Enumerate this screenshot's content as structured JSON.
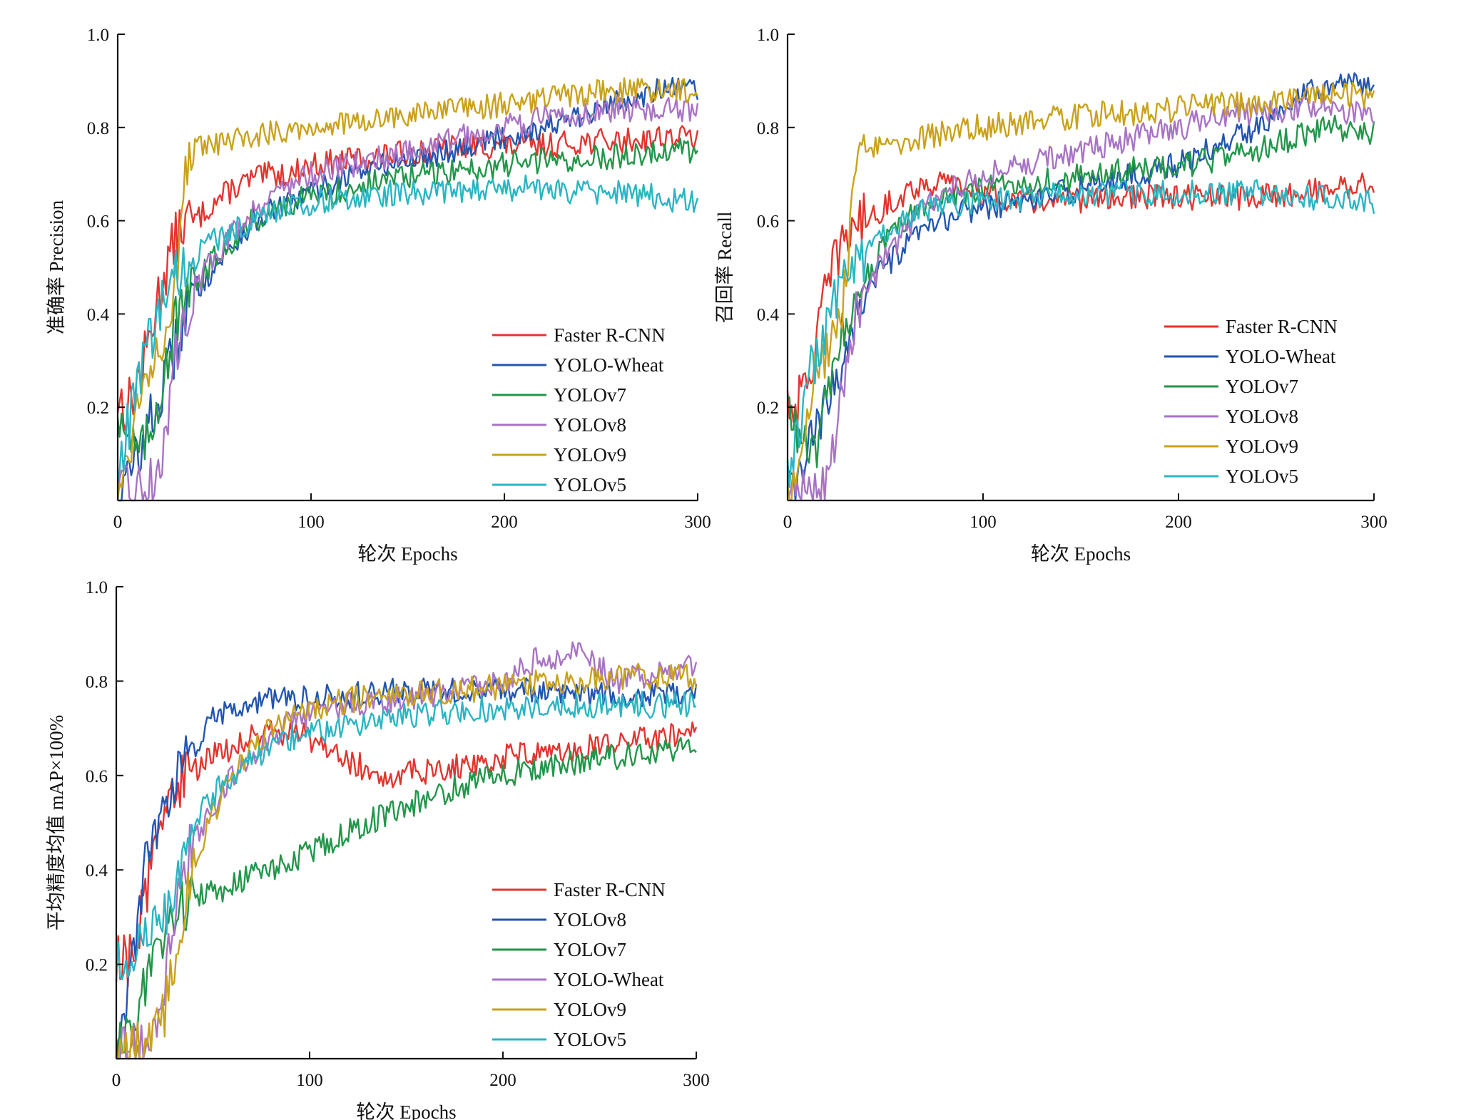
{
  "chart_data": [
    {
      "type": "line",
      "xlabel": "轮次 Epochs",
      "ylabel": "准确率 Precision",
      "xlim": [
        0,
        300
      ],
      "ylim": [
        0,
        1.0
      ],
      "xticks": [
        "0",
        "100",
        "200",
        "300"
      ],
      "yticks": [
        "0.2",
        "0.4",
        "0.6",
        "0.8",
        "1.0"
      ],
      "legend": "lower-right",
      "grid": false,
      "series": [
        {
          "name": "Faster R-CNN",
          "color": "#e3342f",
          "x": [
            0,
            5,
            10,
            15,
            20,
            25,
            30,
            35,
            40,
            50,
            60,
            70,
            80,
            90,
            100,
            120,
            140,
            160,
            180,
            200,
            220,
            240,
            260,
            280,
            300
          ],
          "y": [
            0.22,
            0.2,
            0.25,
            0.32,
            0.42,
            0.5,
            0.56,
            0.6,
            0.6,
            0.64,
            0.67,
            0.69,
            0.7,
            0.7,
            0.72,
            0.73,
            0.74,
            0.75,
            0.76,
            0.76,
            0.76,
            0.77,
            0.77,
            0.78,
            0.78
          ]
        },
        {
          "name": "YOLO-Wheat",
          "color": "#2355b0",
          "x": [
            0,
            5,
            10,
            15,
            20,
            25,
            30,
            35,
            40,
            50,
            60,
            70,
            80,
            90,
            100,
            120,
            140,
            160,
            180,
            200,
            220,
            240,
            260,
            280,
            300
          ],
          "y": [
            0.0,
            0.04,
            0.1,
            0.15,
            0.2,
            0.26,
            0.33,
            0.4,
            0.45,
            0.5,
            0.55,
            0.6,
            0.62,
            0.64,
            0.66,
            0.7,
            0.72,
            0.74,
            0.76,
            0.78,
            0.8,
            0.82,
            0.86,
            0.88,
            0.88
          ]
        },
        {
          "name": "YOLOv7",
          "color": "#22964a",
          "x": [
            0,
            5,
            10,
            15,
            20,
            25,
            30,
            35,
            40,
            50,
            60,
            70,
            80,
            90,
            100,
            120,
            140,
            160,
            180,
            200,
            220,
            240,
            260,
            280,
            300
          ],
          "y": [
            0.2,
            0.15,
            0.1,
            0.12,
            0.2,
            0.3,
            0.38,
            0.42,
            0.46,
            0.52,
            0.56,
            0.6,
            0.62,
            0.64,
            0.65,
            0.67,
            0.69,
            0.7,
            0.71,
            0.72,
            0.73,
            0.73,
            0.74,
            0.75,
            0.75
          ]
        },
        {
          "name": "YOLOv8",
          "color": "#a873c4",
          "x": [
            0,
            5,
            10,
            15,
            20,
            25,
            30,
            35,
            40,
            50,
            60,
            70,
            80,
            90,
            100,
            120,
            140,
            160,
            180,
            200,
            220,
            240,
            260,
            280,
            300
          ],
          "y": [
            0.0,
            0.02,
            0.02,
            0.03,
            0.05,
            0.15,
            0.3,
            0.4,
            0.46,
            0.52,
            0.58,
            0.62,
            0.66,
            0.68,
            0.7,
            0.72,
            0.74,
            0.76,
            0.78,
            0.8,
            0.82,
            0.83,
            0.84,
            0.84,
            0.83
          ]
        },
        {
          "name": "YOLOv9",
          "color": "#c9a21b",
          "x": [
            0,
            5,
            10,
            15,
            20,
            25,
            30,
            35,
            40,
            50,
            60,
            70,
            80,
            90,
            100,
            120,
            140,
            160,
            180,
            200,
            220,
            240,
            260,
            280,
            300
          ],
          "y": [
            0.0,
            0.1,
            0.2,
            0.28,
            0.33,
            0.38,
            0.45,
            0.72,
            0.75,
            0.76,
            0.77,
            0.78,
            0.79,
            0.8,
            0.8,
            0.81,
            0.82,
            0.83,
            0.84,
            0.85,
            0.86,
            0.87,
            0.88,
            0.88,
            0.88
          ]
        },
        {
          "name": "YOLOv5",
          "color": "#2ab5c2",
          "x": [
            0,
            5,
            10,
            15,
            20,
            25,
            30,
            35,
            40,
            50,
            60,
            70,
            80,
            90,
            100,
            120,
            140,
            160,
            180,
            200,
            220,
            240,
            260,
            280,
            300
          ],
          "y": [
            0.05,
            0.15,
            0.25,
            0.32,
            0.38,
            0.44,
            0.48,
            0.5,
            0.52,
            0.56,
            0.58,
            0.6,
            0.62,
            0.63,
            0.64,
            0.65,
            0.66,
            0.66,
            0.66,
            0.67,
            0.67,
            0.66,
            0.66,
            0.65,
            0.64
          ]
        }
      ]
    },
    {
      "type": "line",
      "xlabel": "轮次 Epochs",
      "ylabel": "召回率 Recall",
      "xlim": [
        0,
        300
      ],
      "ylim": [
        0,
        1.0
      ],
      "xticks": [
        "0",
        "100",
        "200",
        "300"
      ],
      "yticks": [
        "0.2",
        "0.4",
        "0.6",
        "0.8",
        "1.0"
      ],
      "legend": "lower-right",
      "grid": false,
      "series": [
        {
          "name": "Faster R-CNN",
          "color": "#e3342f",
          "x": [
            0,
            5,
            10,
            15,
            20,
            25,
            30,
            35,
            40,
            50,
            60,
            70,
            80,
            90,
            100,
            120,
            140,
            160,
            180,
            200,
            220,
            240,
            260,
            280,
            300
          ],
          "y": [
            0.22,
            0.2,
            0.25,
            0.35,
            0.45,
            0.52,
            0.57,
            0.6,
            0.6,
            0.63,
            0.66,
            0.68,
            0.68,
            0.67,
            0.66,
            0.64,
            0.64,
            0.65,
            0.65,
            0.65,
            0.65,
            0.65,
            0.66,
            0.67,
            0.68
          ]
        },
        {
          "name": "YOLO-Wheat",
          "color": "#2355b0",
          "x": [
            0,
            5,
            10,
            15,
            20,
            25,
            30,
            35,
            40,
            50,
            60,
            70,
            80,
            90,
            100,
            120,
            140,
            160,
            180,
            200,
            220,
            240,
            260,
            280,
            300
          ],
          "y": [
            0.0,
            0.04,
            0.1,
            0.15,
            0.2,
            0.26,
            0.33,
            0.4,
            0.45,
            0.5,
            0.54,
            0.58,
            0.6,
            0.62,
            0.63,
            0.64,
            0.66,
            0.68,
            0.7,
            0.72,
            0.76,
            0.8,
            0.87,
            0.9,
            0.89
          ]
        },
        {
          "name": "YOLOv7",
          "color": "#22964a",
          "x": [
            0,
            5,
            10,
            15,
            20,
            25,
            30,
            35,
            40,
            50,
            60,
            70,
            80,
            90,
            100,
            120,
            140,
            160,
            180,
            200,
            220,
            240,
            260,
            280,
            300
          ],
          "y": [
            0.2,
            0.15,
            0.1,
            0.12,
            0.2,
            0.3,
            0.38,
            0.44,
            0.48,
            0.55,
            0.6,
            0.63,
            0.65,
            0.66,
            0.67,
            0.68,
            0.69,
            0.7,
            0.71,
            0.72,
            0.73,
            0.75,
            0.78,
            0.8,
            0.79
          ]
        },
        {
          "name": "YOLOv8",
          "color": "#a873c4",
          "x": [
            0,
            5,
            10,
            15,
            20,
            25,
            30,
            35,
            40,
            50,
            60,
            70,
            80,
            90,
            100,
            120,
            140,
            160,
            180,
            200,
            220,
            240,
            260,
            280,
            300
          ],
          "y": [
            0.0,
            0.02,
            0.02,
            0.03,
            0.05,
            0.15,
            0.3,
            0.4,
            0.46,
            0.52,
            0.58,
            0.63,
            0.66,
            0.68,
            0.7,
            0.72,
            0.74,
            0.76,
            0.78,
            0.8,
            0.82,
            0.83,
            0.84,
            0.84,
            0.82
          ]
        },
        {
          "name": "YOLOv9",
          "color": "#c9a21b",
          "x": [
            0,
            5,
            10,
            15,
            20,
            25,
            30,
            35,
            40,
            50,
            60,
            70,
            80,
            90,
            100,
            120,
            140,
            160,
            180,
            200,
            220,
            240,
            260,
            280,
            300
          ],
          "y": [
            0.0,
            0.1,
            0.2,
            0.28,
            0.33,
            0.38,
            0.45,
            0.72,
            0.75,
            0.76,
            0.77,
            0.78,
            0.79,
            0.8,
            0.8,
            0.81,
            0.82,
            0.83,
            0.83,
            0.84,
            0.85,
            0.85,
            0.86,
            0.87,
            0.87
          ]
        },
        {
          "name": "YOLOv5",
          "color": "#2ab5c2",
          "x": [
            0,
            5,
            10,
            15,
            20,
            25,
            30,
            35,
            40,
            50,
            60,
            70,
            80,
            90,
            100,
            120,
            140,
            160,
            180,
            200,
            220,
            240,
            260,
            280,
            300
          ],
          "y": [
            0.05,
            0.15,
            0.25,
            0.32,
            0.38,
            0.44,
            0.48,
            0.5,
            0.53,
            0.57,
            0.6,
            0.62,
            0.63,
            0.64,
            0.64,
            0.65,
            0.66,
            0.66,
            0.66,
            0.66,
            0.66,
            0.66,
            0.65,
            0.65,
            0.64
          ]
        }
      ]
    },
    {
      "type": "line",
      "xlabel": "轮次 Epochs",
      "ylabel": "平均精度均值 mAP×100%",
      "xlim": [
        0,
        300
      ],
      "ylim": [
        0,
        1.0
      ],
      "xticks": [
        "0",
        "100",
        "200",
        "300"
      ],
      "yticks": [
        "0.2",
        "0.4",
        "0.6",
        "0.8",
        "1.0"
      ],
      "legend": "lower-right",
      "grid": false,
      "series": [
        {
          "name": "Faster R-CNN",
          "color": "#e3342f",
          "x": [
            0,
            5,
            10,
            15,
            20,
            25,
            30,
            35,
            40,
            50,
            60,
            70,
            80,
            90,
            100,
            120,
            140,
            160,
            180,
            200,
            220,
            240,
            260,
            280,
            300
          ],
          "y": [
            0.22,
            0.2,
            0.25,
            0.35,
            0.45,
            0.52,
            0.57,
            0.6,
            0.61,
            0.64,
            0.66,
            0.68,
            0.69,
            0.69,
            0.68,
            0.63,
            0.6,
            0.61,
            0.62,
            0.64,
            0.65,
            0.66,
            0.67,
            0.68,
            0.7
          ]
        },
        {
          "name": "YOLOv8",
          "color": "#2355b0",
          "x": [
            0,
            5,
            10,
            15,
            20,
            25,
            30,
            35,
            40,
            50,
            60,
            70,
            80,
            90,
            100,
            120,
            140,
            160,
            180,
            200,
            220,
            240,
            260,
            280,
            300
          ],
          "y": [
            0.0,
            0.1,
            0.25,
            0.4,
            0.48,
            0.54,
            0.58,
            0.62,
            0.65,
            0.72,
            0.74,
            0.75,
            0.76,
            0.76,
            0.77,
            0.77,
            0.78,
            0.78,
            0.78,
            0.78,
            0.78,
            0.77,
            0.77,
            0.77,
            0.77
          ]
        },
        {
          "name": "YOLOv7",
          "color": "#22964a",
          "x": [
            0,
            5,
            10,
            15,
            20,
            25,
            30,
            35,
            40,
            50,
            60,
            70,
            80,
            90,
            100,
            120,
            140,
            160,
            180,
            200,
            220,
            240,
            260,
            280,
            300
          ],
          "y": [
            0.0,
            0.05,
            0.1,
            0.15,
            0.22,
            0.27,
            0.3,
            0.32,
            0.34,
            0.35,
            0.37,
            0.39,
            0.4,
            0.42,
            0.44,
            0.48,
            0.52,
            0.55,
            0.58,
            0.6,
            0.62,
            0.63,
            0.64,
            0.65,
            0.66
          ]
        },
        {
          "name": "YOLO-Wheat",
          "color": "#a873c4",
          "x": [
            0,
            5,
            10,
            15,
            20,
            25,
            30,
            35,
            40,
            50,
            60,
            70,
            80,
            90,
            100,
            120,
            140,
            160,
            180,
            200,
            220,
            240,
            260,
            280,
            300
          ],
          "y": [
            0.0,
            0.02,
            0.02,
            0.03,
            0.05,
            0.15,
            0.3,
            0.4,
            0.46,
            0.53,
            0.6,
            0.64,
            0.68,
            0.71,
            0.73,
            0.75,
            0.76,
            0.77,
            0.78,
            0.8,
            0.85,
            0.86,
            0.8,
            0.82,
            0.83
          ]
        },
        {
          "name": "YOLOv9",
          "color": "#c9a21b",
          "x": [
            0,
            5,
            10,
            15,
            20,
            25,
            30,
            35,
            40,
            50,
            60,
            70,
            80,
            90,
            100,
            120,
            140,
            160,
            180,
            200,
            220,
            240,
            260,
            280,
            300
          ],
          "y": [
            0.0,
            0.01,
            0.02,
            0.03,
            0.05,
            0.1,
            0.2,
            0.32,
            0.42,
            0.52,
            0.6,
            0.66,
            0.7,
            0.72,
            0.74,
            0.76,
            0.77,
            0.78,
            0.78,
            0.79,
            0.8,
            0.8,
            0.81,
            0.81,
            0.81
          ]
        },
        {
          "name": "YOLOv5",
          "color": "#2ab5c2",
          "x": [
            0,
            5,
            10,
            15,
            20,
            25,
            30,
            35,
            40,
            50,
            60,
            70,
            80,
            90,
            100,
            120,
            140,
            160,
            180,
            200,
            220,
            240,
            260,
            280,
            300
          ],
          "y": [
            0.2,
            0.22,
            0.24,
            0.26,
            0.28,
            0.3,
            0.36,
            0.44,
            0.5,
            0.56,
            0.6,
            0.64,
            0.66,
            0.68,
            0.69,
            0.7,
            0.72,
            0.73,
            0.74,
            0.74,
            0.75,
            0.75,
            0.75,
            0.75,
            0.75
          ]
        }
      ]
    }
  ]
}
